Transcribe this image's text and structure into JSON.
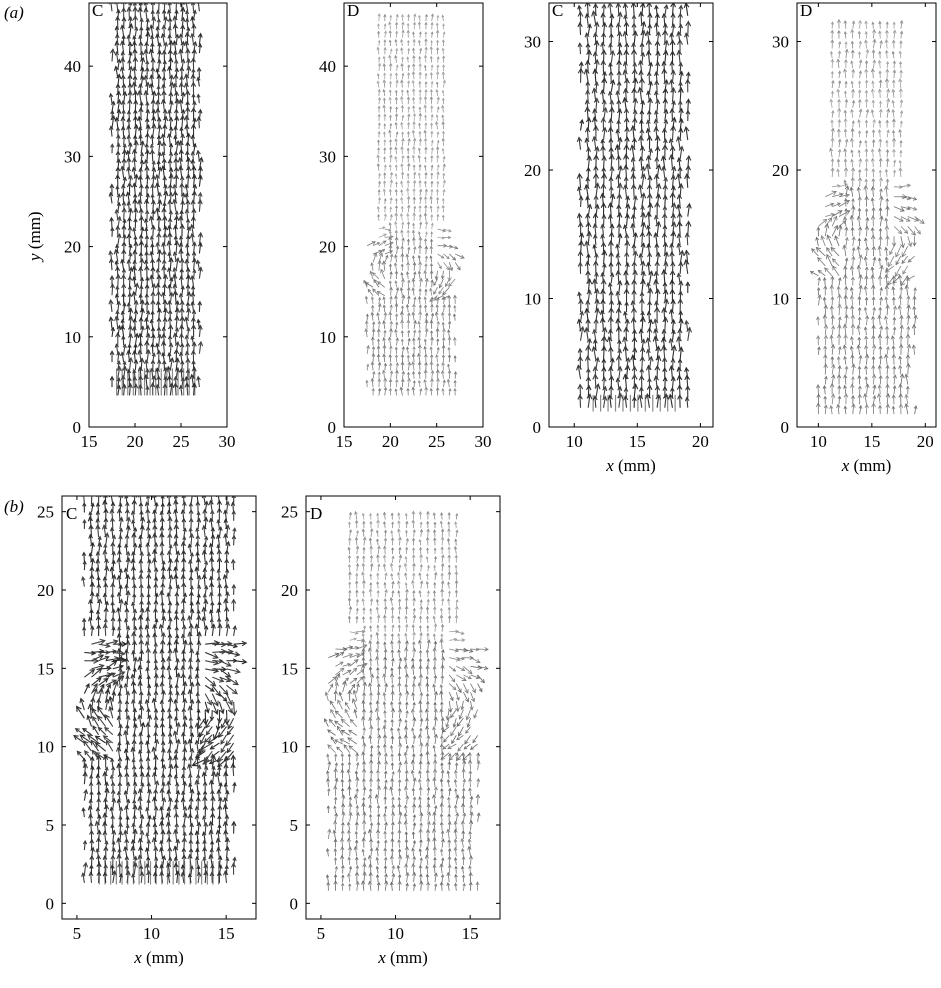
{
  "figure": {
    "part_a_label": "(a)",
    "part_b_label": "(b)"
  },
  "chart_data": [
    {
      "type": "quiver",
      "panel_label": "C",
      "xlabel": "",
      "ylabel": "y (mm)",
      "xlim": [
        15,
        30
      ],
      "ylim": [
        0,
        47
      ],
      "xticks": [
        15,
        20,
        25,
        30
      ],
      "yticks": [
        0,
        10,
        20,
        30,
        40
      ],
      "field": {
        "x_range": [
          17.5,
          27
        ],
        "y_range": [
          3.5,
          47
        ],
        "nx": 16,
        "ny": 48,
        "strength": 1.0,
        "vortex_y": null
      },
      "inflow": {
        "x_range": [
          18,
          26.5
        ],
        "y_range": [
          3.5,
          6.5
        ],
        "n": 15
      }
    },
    {
      "type": "quiver",
      "panel_label": "D",
      "xlabel": "",
      "ylabel": "",
      "xlim": [
        15,
        30
      ],
      "ylim": [
        0,
        47
      ],
      "xticks": [
        15,
        20,
        25,
        30
      ],
      "yticks": [
        0,
        10,
        20,
        30,
        40
      ],
      "field": {
        "x_range": [
          17.5,
          27
        ],
        "y_range": [
          3.5,
          45
        ],
        "nx": 16,
        "ny": 46,
        "strength": 0.45,
        "vortex_y": 18
      },
      "inflow": null
    },
    {
      "type": "quiver",
      "panel_label": "C",
      "xlabel": "x (mm)",
      "ylabel": "",
      "xlim": [
        8,
        21
      ],
      "ylim": [
        0,
        33
      ],
      "xticks": [
        10,
        15,
        20
      ],
      "yticks": [
        0,
        10,
        20,
        30
      ],
      "field": {
        "x_range": [
          10.5,
          19
        ],
        "y_range": [
          1.5,
          32
        ],
        "nx": 15,
        "ny": 42,
        "strength": 1.0,
        "vortex_y": null
      },
      "inflow": {
        "x_range": [
          11.5,
          18
        ],
        "y_range": [
          1.2,
          2.5
        ],
        "n": 12
      }
    },
    {
      "type": "quiver",
      "panel_label": "D",
      "xlabel": "x (mm)",
      "ylabel": "",
      "xlim": [
        8,
        21
      ],
      "ylim": [
        0,
        33
      ],
      "xticks": [
        10,
        15,
        20
      ],
      "yticks": [
        0,
        10,
        20,
        30
      ],
      "field": {
        "x_range": [
          10,
          19
        ],
        "y_range": [
          1,
          31
        ],
        "nx": 15,
        "ny": 40,
        "strength": 0.5,
        "vortex_y": 15
      },
      "inflow": null
    },
    {
      "type": "quiver",
      "panel_label": "C",
      "xlabel": "x (mm)",
      "ylabel": "",
      "xlim": [
        4,
        17
      ],
      "ylim": [
        -1,
        26
      ],
      "xticks": [
        5,
        10,
        15
      ],
      "yticks": [
        0,
        5,
        10,
        15,
        20,
        25
      ],
      "field": {
        "x_range": [
          5.5,
          15.5
        ],
        "y_range": [
          1.3,
          26
        ],
        "nx": 22,
        "ny": 48,
        "strength": 1.0,
        "vortex_y": 13
      },
      "inflow": {
        "x_range": [
          6.5,
          14.5
        ],
        "y_range": [
          1.2,
          2.7
        ],
        "n": 22
      }
    },
    {
      "type": "quiver",
      "panel_label": "D",
      "xlabel": "x (mm)",
      "ylabel": "",
      "xlim": [
        4,
        17
      ],
      "ylim": [
        -1,
        26
      ],
      "xticks": [
        5,
        10,
        15
      ],
      "yticks": [
        0,
        5,
        10,
        15,
        20,
        25
      ],
      "field": {
        "x_range": [
          5.5,
          15.5
        ],
        "y_range": [
          0.8,
          24.5
        ],
        "nx": 22,
        "ny": 44,
        "strength": 0.55,
        "vortex_y": 13.5
      },
      "inflow": null
    }
  ]
}
